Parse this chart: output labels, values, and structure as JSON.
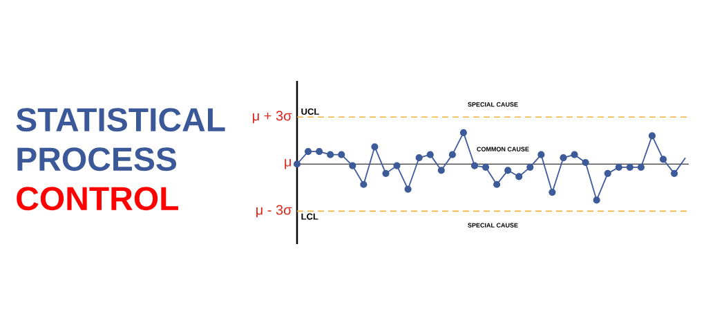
{
  "chart_data": {
    "type": "line",
    "title": "STATISTICAL PROCESS",
    "subtitle": "CONTROL",
    "categories": [
      null,
      null,
      null,
      null,
      null,
      null,
      null,
      null,
      null,
      null,
      null,
      null,
      null,
      null,
      null,
      null,
      null,
      null,
      null,
      null,
      null,
      null,
      null,
      null,
      null,
      null,
      null,
      null,
      null,
      null,
      null,
      null,
      null,
      null,
      null,
      null
    ],
    "series": [
      {
        "color": "#3d5a99",
        "marker": "circle",
        "values": [
          0,
          0.8,
          0.8,
          0.6,
          0.6,
          -0.1,
          -1.3,
          1.1,
          -0.6,
          -0.1,
          -1.6,
          0.4,
          0.6,
          -0.4,
          0.6,
          2.0,
          -0.1,
          -0.2,
          -1.3,
          -0.4,
          -0.8,
          -0.2,
          0.6,
          -1.8,
          0.4,
          0.6,
          0.1,
          -2.3,
          -0.6,
          -0.2,
          -0.2,
          -0.2,
          1.8,
          0.3,
          -0.6,
          null
        ]
      },
      {
        "color": "#3d5a99",
        "values": [
          null,
          null,
          null,
          null,
          null,
          null,
          null,
          null,
          null,
          null,
          null,
          null,
          null,
          null,
          null,
          null,
          null,
          null,
          null,
          null,
          null,
          null,
          null,
          null,
          null,
          null,
          null,
          null,
          null,
          null,
          null,
          null,
          null,
          null,
          -0.6,
          0.4
        ]
      }
    ],
    "ylim": [
      -5.1,
      5.3
    ],
    "yticks": [
      {
        "value": 3,
        "label": "μ + 3σ"
      },
      {
        "value": 0,
        "label": "μ"
      },
      {
        "value": -3,
        "label": "μ - 3σ"
      }
    ],
    "tick_labels": "y",
    "ref_lines": [
      {
        "axis": "y",
        "value": 3,
        "label": "UCL",
        "color": "#f2b33d",
        "line_style": "dashed"
      },
      {
        "axis": "y",
        "value": -3,
        "label": "LCL",
        "color": "#f2b33d",
        "line_style": "dashed"
      }
    ],
    "annotations": [
      "SPECIAL CAUSE",
      "COMMON CAUSE",
      "SPECIAL CAUSE"
    ],
    "grid": false
  }
}
